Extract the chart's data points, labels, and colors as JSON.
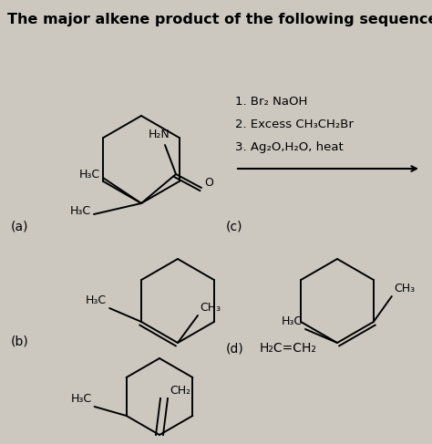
{
  "title": "The major alkene product of the following sequence is:",
  "bg_color": "#ccc8c0",
  "title_fontsize": 11.5,
  "reactions": [
    "1. Br₂ NaOH",
    "2. Excess CH₃CH₂Br",
    "3. Ag₂O,H₂O, heat"
  ],
  "labels": [
    "(a)",
    "(b)",
    "(c)",
    "(d)"
  ],
  "answer_d": "H₂C=CH₂"
}
